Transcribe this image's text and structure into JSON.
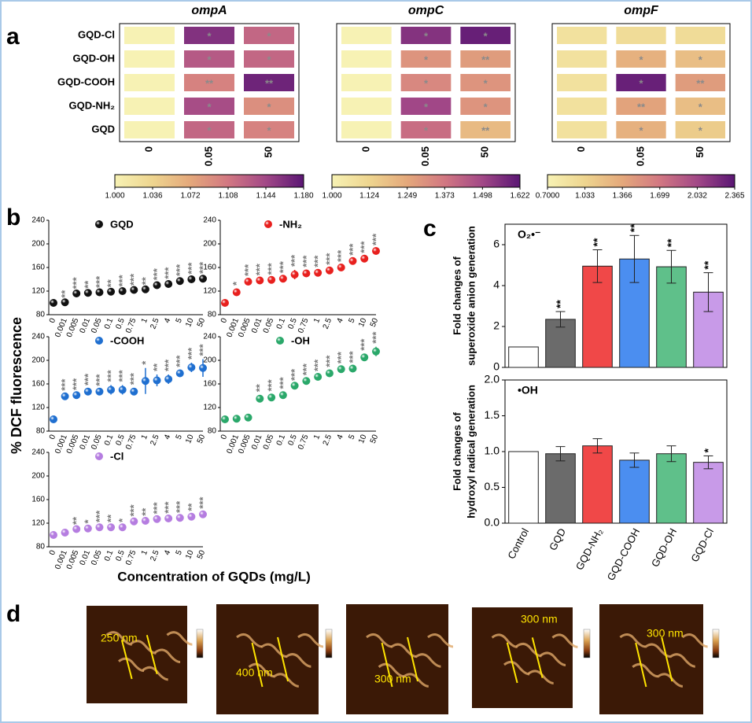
{
  "panel_labels": [
    "a",
    "b",
    "c",
    "d"
  ],
  "heatmap_rows": [
    "GQD-Cl",
    "GQD-OH",
    "GQD-COOH",
    "GQD-NH₂",
    "GQD"
  ],
  "panel_b": {
    "ylabel": "% DCF fluorescence",
    "xlabel": "Concentration of GQDs (mg/L)"
  },
  "chart_data": [
    {
      "type": "heatmap",
      "title": "ompA",
      "columns": [
        "0",
        "0.05",
        "50"
      ],
      "values": [
        [
          1.0,
          1.16,
          1.12
        ],
        [
          1.0,
          1.13,
          1.12
        ],
        [
          1.0,
          1.1,
          1.17
        ],
        [
          1.0,
          1.14,
          1.09
        ],
        [
          1.0,
          1.12,
          1.1
        ]
      ],
      "annotations": [
        [
          null,
          "*",
          "*"
        ],
        [
          null,
          "*",
          "*"
        ],
        [
          null,
          "**",
          "**"
        ],
        [
          null,
          "*",
          "*"
        ],
        [
          null,
          "*",
          "*"
        ]
      ],
      "colormap": [
        "#f7f2b4",
        "#eed58f",
        "#e4a87b",
        "#d27782",
        "#a24887",
        "#5a1674"
      ],
      "colorbar_ticks": [
        {
          "value": 1.0,
          "label": "1.000"
        },
        1.036,
        1.072,
        1.108,
        1.144,
        {
          "value": 1.18,
          "label": "1.180"
        }
      ]
    },
    {
      "type": "heatmap",
      "title": "ompC",
      "columns": [
        "0",
        "0.05",
        "50"
      ],
      "values": [
        [
          1.0,
          1.55,
          1.6
        ],
        [
          1.0,
          1.3,
          1.28
        ],
        [
          1.0,
          1.33,
          1.3
        ],
        [
          1.0,
          1.5,
          1.3
        ],
        [
          1.0,
          1.4,
          1.2
        ]
      ],
      "annotations": [
        [
          null,
          "*",
          "*"
        ],
        [
          null,
          "*",
          "**"
        ],
        [
          null,
          "*",
          "*"
        ],
        [
          null,
          "*",
          "*"
        ],
        [
          null,
          "*",
          "**"
        ]
      ],
      "colormap": [
        "#f7f2b4",
        "#eed58f",
        "#e4a87b",
        "#d27782",
        "#a24887",
        "#5a1674"
      ],
      "colorbar_ticks": [
        {
          "value": 1.0,
          "label": "1.000"
        },
        1.124,
        1.249,
        1.373,
        1.498,
        1.622
      ]
    },
    {
      "type": "heatmap",
      "title": "ompF",
      "columns": [
        "0",
        "0.05",
        "50"
      ],
      "values": [
        [
          0.9,
          0.95,
          0.95
        ],
        [
          0.9,
          1.3,
          1.2
        ],
        [
          0.9,
          2.3,
          1.45
        ],
        [
          0.9,
          1.4,
          1.2
        ],
        [
          0.9,
          1.3,
          1.1
        ]
      ],
      "annotations": [
        [
          null,
          null,
          null
        ],
        [
          null,
          "*",
          "*"
        ],
        [
          null,
          "*",
          "**"
        ],
        [
          null,
          "**",
          "*"
        ],
        [
          null,
          "*",
          "*"
        ]
      ],
      "colormap": [
        "#f7f2b4",
        "#eed58f",
        "#e4a87b",
        "#d27782",
        "#a24887",
        "#5a1674"
      ],
      "colorbar_ticks": [
        {
          "value": 0.7,
          "label": "0.7000"
        },
        1.033,
        1.366,
        1.699,
        2.032,
        2.365
      ]
    },
    {
      "type": "scatter",
      "categories": [
        "0",
        "0.001",
        "0.005",
        "0.01",
        "0.05",
        "0.1",
        "0.5",
        "0.75",
        "1",
        "2.5",
        "4",
        "5",
        "10",
        "50"
      ],
      "ylim": [
        80,
        240
      ],
      "yticks": [
        80,
        120,
        160,
        200,
        240
      ],
      "series": [
        {
          "name": "GQD",
          "color": "#111111",
          "values": [
            100,
            101,
            116,
            117,
            118,
            119,
            120,
            122,
            123,
            130,
            132,
            137,
            140,
            141
          ],
          "errors": [
            1,
            2,
            2,
            2,
            2,
            2,
            2,
            2,
            2,
            3,
            3,
            3,
            3,
            3
          ],
          "annotations": [
            null,
            "**",
            "***",
            "**",
            "***",
            "**",
            "***",
            "***",
            "**",
            "***",
            "***",
            "***",
            "***",
            "***"
          ]
        }
      ]
    },
    {
      "type": "scatter",
      "categories": [
        "0",
        "0.001",
        "0.005",
        "0.01",
        "0.05",
        "0.1",
        "0.5",
        "0.75",
        "1",
        "2.5",
        "4",
        "5",
        "10",
        "50"
      ],
      "ylim": [
        80,
        240
      ],
      "yticks": [
        80,
        120,
        160,
        200,
        240
      ],
      "series": [
        {
          "name": "-NH₂",
          "color": "#e8201e",
          "values": [
            100,
            118,
            136,
            138,
            139,
            141,
            148,
            150,
            151,
            155,
            160,
            171,
            175,
            188
          ],
          "errors": [
            1,
            6,
            4,
            3,
            3,
            4,
            8,
            5,
            4,
            4,
            4,
            4,
            4,
            4
          ],
          "annotations": [
            null,
            "*",
            "***",
            "***",
            "***",
            "***",
            "***",
            "***",
            "***",
            "***",
            "***",
            "***",
            "***",
            "***"
          ]
        }
      ]
    },
    {
      "type": "scatter",
      "categories": [
        "0",
        "0.001",
        "0.005",
        "0.01",
        "0.05",
        "0.1",
        "0.5",
        "0.75",
        "1",
        "2.5",
        "4",
        "5",
        "10",
        "50"
      ],
      "ylim": [
        80,
        240
      ],
      "yticks": [
        80,
        120,
        160,
        200,
        240
      ],
      "series": [
        {
          "name": "-COOH",
          "color": "#1f6fd0",
          "values": [
            100,
            139,
            141,
            147,
            147,
            150,
            150,
            147,
            165,
            166,
            168,
            178,
            188,
            187
          ],
          "errors": [
            1,
            4,
            3,
            5,
            4,
            8,
            8,
            6,
            22,
            10,
            8,
            5,
            8,
            15
          ],
          "annotations": [
            null,
            "***",
            "***",
            "***",
            "***",
            "***",
            "***",
            "***",
            "*",
            "**",
            "***",
            "***",
            "***",
            "***"
          ]
        }
      ]
    },
    {
      "type": "scatter",
      "categories": [
        "0",
        "0.001",
        "0.005",
        "0.01",
        "0.05",
        "0.1",
        "0.5",
        "0.75",
        "1",
        "2.5",
        "4",
        "5",
        "10",
        "50"
      ],
      "ylim": [
        80,
        240
      ],
      "yticks": [
        80,
        120,
        160,
        200,
        240
      ],
      "series": [
        {
          "name": "-OH",
          "color": "#2aa86a",
          "values": [
            100,
            101,
            103,
            135,
            137,
            141,
            157,
            165,
            172,
            178,
            185,
            186,
            205,
            215
          ],
          "errors": [
            1,
            3,
            4,
            6,
            5,
            5,
            3,
            4,
            4,
            5,
            4,
            4,
            6,
            8
          ],
          "annotations": [
            null,
            null,
            null,
            "**",
            "***",
            "***",
            "***",
            "***",
            "***",
            "***",
            "***",
            "***",
            "***",
            "***"
          ]
        }
      ]
    },
    {
      "type": "scatter",
      "categories": [
        "0",
        "0.001",
        "0.005",
        "0.01",
        "0.05",
        "0.1",
        "0.5",
        "0.75",
        "1",
        "2.5",
        "4",
        "5",
        "10",
        "50"
      ],
      "ylim": [
        80,
        240
      ],
      "yticks": [
        80,
        120,
        160,
        200,
        240
      ],
      "series": [
        {
          "name": "-Cl",
          "color": "#b57de0",
          "values": [
            100,
            104,
            110,
            111,
            113,
            113,
            113,
            123,
            124,
            127,
            128,
            129,
            131,
            135
          ],
          "errors": [
            1,
            2,
            2,
            3,
            3,
            3,
            3,
            3,
            3,
            3,
            3,
            3,
            4,
            4
          ],
          "annotations": [
            null,
            null,
            "**",
            "*",
            "***",
            "**",
            "*",
            "***",
            "**",
            "***",
            "***",
            "***",
            "**",
            "***"
          ]
        }
      ]
    },
    {
      "type": "bar",
      "annotation": "O₂•⁻",
      "ylabel": [
        "Fold changes of",
        "superoxide anion generation"
      ],
      "ylim": [
        0,
        7
      ],
      "yticks": [
        0,
        2,
        4,
        6
      ],
      "values": [
        1,
        2.35,
        4.95,
        5.3,
        4.92,
        3.68
      ],
      "errors": [
        null,
        0.38,
        0.8,
        1.15,
        0.8,
        0.95
      ],
      "value_annotations": [
        null,
        "**",
        "**",
        "**",
        "**",
        "**"
      ],
      "colors": [
        "#ffffff",
        "#6b6b6b",
        "#f04848",
        "#4b8ef0",
        "#5fc08a",
        "#c89ae8"
      ]
    },
    {
      "type": "bar",
      "annotation": "•OH",
      "ylabel": [
        "Fold changes of",
        "hydroxyl radical generation"
      ],
      "categories": [
        "Control",
        "GQD",
        "GQD-NH₂",
        "GQD-COOH",
        "GQD-OH",
        "GQD-Cl"
      ],
      "ylim": [
        0,
        2
      ],
      "yticks": [
        {
          "value": 0,
          "label": "0.0"
        },
        0.5,
        {
          "value": 1,
          "label": "1.0"
        },
        1.5,
        {
          "value": 2,
          "label": "2.0"
        }
      ],
      "values": [
        1,
        0.97,
        1.08,
        0.88,
        0.97,
        0.85
      ],
      "errors": [
        null,
        0.1,
        0.1,
        0.1,
        0.11,
        0.09
      ],
      "value_annotations": [
        null,
        null,
        null,
        null,
        null,
        "*"
      ],
      "colors": [
        "#ffffff",
        "#6b6b6b",
        "#f04848",
        "#4b8ef0",
        "#5fc08a",
        "#c89ae8"
      ]
    }
  ],
  "afm_images": [
    {
      "scale_label": "250 nm"
    },
    {
      "scale_label": "400 nm"
    },
    {
      "scale_label": "300 nm"
    },
    {
      "scale_label": "300 nm"
    },
    {
      "scale_label": "300 nm"
    }
  ]
}
